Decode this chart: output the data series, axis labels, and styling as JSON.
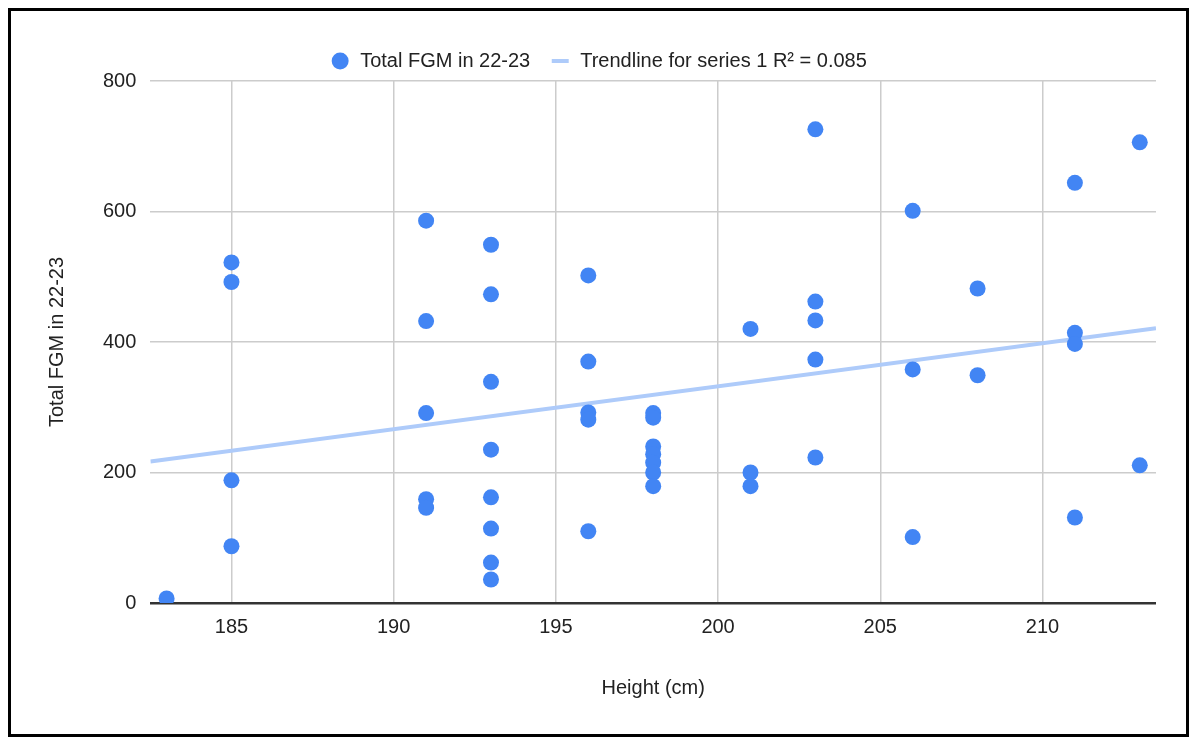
{
  "chart_data": {
    "type": "scatter",
    "xlabel": "Height (cm)",
    "ylabel": "Total FGM in 22-23",
    "xlim": [
      182.5,
      213.5
    ],
    "xticks": [
      185,
      190,
      195,
      200,
      205,
      210
    ],
    "ylim": [
      0,
      800
    ],
    "yticks": [
      0,
      200,
      400,
      600,
      800
    ],
    "grid": true,
    "legend": "top",
    "marker": "circle",
    "series": [
      {
        "name": "Total FGM in 22-23",
        "color": "#4285f4",
        "x": [
          183,
          185,
          185,
          185,
          185,
          191,
          191,
          191,
          191,
          191,
          193,
          193,
          193,
          193,
          193,
          193,
          193,
          193,
          196,
          196,
          196,
          196,
          196,
          198,
          198,
          198,
          198,
          198,
          198,
          198,
          201,
          201,
          201,
          203,
          203,
          203,
          203,
          203,
          206,
          206,
          206,
          208,
          208,
          211,
          211,
          211,
          211,
          213,
          213
        ],
        "values": [
          7,
          522,
          492,
          188,
          87,
          586,
          432,
          291,
          159,
          146,
          549,
          473,
          339,
          235,
          162,
          114,
          62,
          36,
          502,
          370,
          292,
          281,
          110,
          291,
          284,
          240,
          228,
          215,
          200,
          179,
          420,
          200,
          179,
          726,
          462,
          433,
          373,
          223,
          601,
          358,
          101,
          482,
          349,
          644,
          414,
          397,
          131,
          706,
          211
        ]
      },
      {
        "name": "Trendline for series 1 R² = 0.085",
        "color": "#aecbfa",
        "type": "line",
        "marker": "none",
        "x": [
          182.5,
          213.5
        ],
        "values": [
          217,
          421
        ]
      }
    ]
  }
}
